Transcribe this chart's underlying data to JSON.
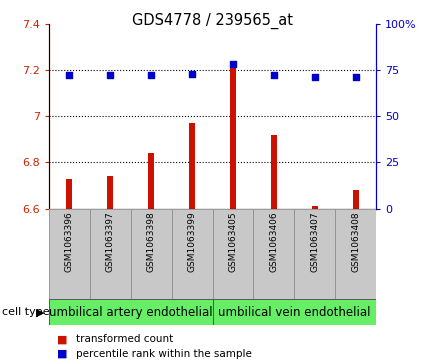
{
  "title": "GDS4778 / 239565_at",
  "samples": [
    "GSM1063396",
    "GSM1063397",
    "GSM1063398",
    "GSM1063399",
    "GSM1063405",
    "GSM1063406",
    "GSM1063407",
    "GSM1063408"
  ],
  "transformed_count": [
    6.73,
    6.74,
    6.84,
    6.97,
    7.22,
    6.92,
    6.61,
    6.68
  ],
  "percentile_rank": [
    72,
    72,
    72,
    73,
    78,
    72,
    71,
    71
  ],
  "ylim_left": [
    6.6,
    7.4
  ],
  "ylim_right": [
    0,
    100
  ],
  "yticks_left": [
    6.6,
    6.8,
    7.0,
    7.2,
    7.4
  ],
  "ytick_labels_left": [
    "6.6",
    "6.8",
    "7",
    "7.2",
    "7.4"
  ],
  "yticks_right": [
    0,
    25,
    50,
    75,
    100
  ],
  "ytick_labels_right": [
    "0",
    "25",
    "50",
    "75",
    "100%"
  ],
  "bar_color": "#cc1100",
  "dot_color": "#0000cc",
  "bar_width": 0.15,
  "background_label_area": "#c8c8c8",
  "cell_type_color": "#66ee66",
  "legend_items": [
    "transformed count",
    "percentile rank within the sample"
  ],
  "title_fontsize": 10.5,
  "tick_fontsize": 8,
  "label_fontsize": 8,
  "cell_type_fontsize": 8.5,
  "sample_fontsize": 6.5,
  "cell_groups": [
    {
      "start": 0,
      "end": 3,
      "label": "umbilical artery endothelial"
    },
    {
      "start": 4,
      "end": 7,
      "label": "umbilical vein endothelial"
    }
  ]
}
